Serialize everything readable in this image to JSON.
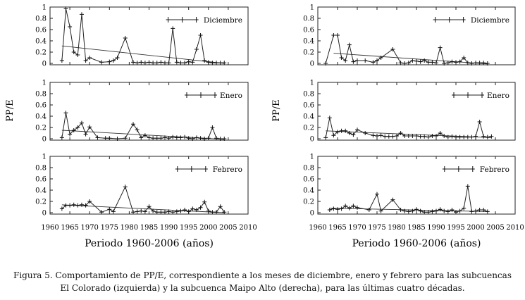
{
  "caption": {
    "line1": "Figura 5. Comportamiento de PP/E, correspondiente a los meses de diciembre, enero y febrero para las subcuencas",
    "line2": "El Colorado (izquierda) y la subcuenca Maipo Alto (derecha), para las últimas cuatro décadas."
  },
  "chart_data": [
    {
      "type": "line",
      "column": "left",
      "ylabel": "PP/E",
      "xlabel": "Periodo 1960-2006 (años)",
      "xlim": [
        1960,
        2010
      ],
      "x_ticks": [
        1960,
        1965,
        1970,
        1975,
        1980,
        1985,
        1990,
        1995,
        2000,
        2005,
        2010
      ],
      "y_ticks": [
        0,
        0.2,
        0.4,
        0.6,
        0.8,
        1
      ],
      "ylim": [
        0,
        1
      ],
      "panels": [
        {
          "legend": "Diciembre",
          "x": [
            1963,
            1964,
            1965,
            1966,
            1967,
            1968,
            1969,
            1970,
            1973,
            1975,
            1976,
            1977,
            1979,
            1981,
            1982,
            1983,
            1984,
            1985,
            1986,
            1987,
            1988,
            1989,
            1990,
            1991,
            1992,
            1993,
            1994,
            1995,
            1996,
            1997,
            1998,
            1999,
            2000,
            2001,
            2002,
            2003,
            2004
          ],
          "values": [
            0.05,
            0.97,
            0.65,
            0.2,
            0.15,
            0.87,
            0.05,
            0.1,
            0.02,
            0.03,
            0.05,
            0.1,
            0.45,
            0.02,
            0.01,
            0.02,
            0.01,
            0.02,
            0.01,
            0.01,
            0.02,
            0.01,
            0.01,
            0.62,
            0.02,
            0.01,
            0.01,
            0.03,
            0.02,
            0.25,
            0.5,
            0.05,
            0.02,
            0.01,
            0.01,
            0.01,
            0.01
          ],
          "trend": [
            [
              1963,
              0.31
            ],
            [
              2004,
              0.0
            ]
          ]
        },
        {
          "legend": "Enero",
          "x": [
            1963,
            1964,
            1965,
            1966,
            1967,
            1968,
            1969,
            1970,
            1972,
            1974,
            1975,
            1977,
            1979,
            1981,
            1982,
            1983,
            1984,
            1985,
            1986,
            1987,
            1988,
            1989,
            1990,
            1991,
            1992,
            1993,
            1994,
            1995,
            1996,
            1997,
            1998,
            1999,
            2000,
            2001,
            2002,
            2003,
            2004
          ],
          "values": [
            0.02,
            0.46,
            0.08,
            0.15,
            0.2,
            0.28,
            0.08,
            0.21,
            0.02,
            0.01,
            0.01,
            0.0,
            0.01,
            0.26,
            0.16,
            0.02,
            0.06,
            0.02,
            0.01,
            0.01,
            0.01,
            0.02,
            0.01,
            0.03,
            0.02,
            0.02,
            0.03,
            0.01,
            0.0,
            0.02,
            0.01,
            0.0,
            0.01,
            0.2,
            0.01,
            0.0,
            0.0
          ],
          "trend": [
            [
              1963,
              0.15
            ],
            [
              2004,
              -0.01
            ]
          ]
        },
        {
          "legend": "Febrero",
          "x": [
            1963,
            1964,
            1965,
            1966,
            1967,
            1968,
            1969,
            1970,
            1973,
            1975,
            1976,
            1979,
            1981,
            1982,
            1983,
            1984,
            1985,
            1986,
            1987,
            1988,
            1989,
            1990,
            1991,
            1992,
            1993,
            1994,
            1995,
            1996,
            1997,
            1998,
            1999,
            2000,
            2001,
            2002,
            2003,
            2004
          ],
          "values": [
            0.07,
            0.13,
            0.13,
            0.14,
            0.13,
            0.14,
            0.13,
            0.2,
            0.01,
            0.06,
            0.02,
            0.46,
            0.01,
            0.02,
            0.03,
            0.02,
            0.11,
            0.03,
            0.01,
            0.01,
            0.01,
            0.02,
            0.01,
            0.02,
            0.03,
            0.05,
            0.02,
            0.07,
            0.05,
            0.09,
            0.19,
            0.03,
            0.01,
            0.01,
            0.11,
            0.01
          ],
          "trend": [
            [
              1963,
              0.14
            ],
            [
              2004,
              0.0
            ]
          ]
        }
      ]
    },
    {
      "type": "line",
      "column": "right",
      "ylabel": "PP/E",
      "xlabel": "Periodo 1960-2006 (años)",
      "xlim": [
        1960,
        2010
      ],
      "x_ticks": [
        1960,
        1965,
        1970,
        1975,
        1980,
        1985,
        1990,
        1995,
        2000,
        2005,
        2010
      ],
      "y_ticks": [
        0,
        0.2,
        0.4,
        0.6,
        0.8,
        1
      ],
      "ylim": [
        0,
        1
      ],
      "panels": [
        {
          "legend": "Diciembre",
          "x": [
            1962,
            1964,
            1965,
            1966,
            1967,
            1968,
            1969,
            1970,
            1972,
            1974,
            1975,
            1976,
            1979,
            1981,
            1982,
            1983,
            1984,
            1985,
            1986,
            1987,
            1988,
            1989,
            1990,
            1991,
            1992,
            1993,
            1994,
            1995,
            1996,
            1997,
            1998,
            1999,
            2000,
            2001,
            2002,
            2003
          ],
          "values": [
            0.0,
            0.5,
            0.5,
            0.1,
            0.05,
            0.33,
            0.03,
            0.05,
            0.05,
            0.02,
            0.05,
            0.1,
            0.25,
            0.01,
            0.0,
            0.01,
            0.05,
            0.04,
            0.03,
            0.05,
            0.02,
            0.02,
            0.01,
            0.28,
            0.0,
            0.01,
            0.03,
            0.02,
            0.03,
            0.1,
            0.01,
            0.0,
            0.01,
            0.01,
            0.01,
            0.0
          ],
          "trend": [
            [
              1964,
              0.18
            ],
            [
              2003,
              -0.01
            ]
          ]
        },
        {
          "legend": "Enero",
          "x": [
            1962,
            1963,
            1964,
            1965,
            1966,
            1967,
            1968,
            1969,
            1970,
            1972,
            1974,
            1975,
            1976,
            1977,
            1978,
            1979,
            1980,
            1981,
            1982,
            1983,
            1984,
            1985,
            1986,
            1987,
            1988,
            1989,
            1990,
            1991,
            1992,
            1993,
            1994,
            1995,
            1996,
            1997,
            1998,
            1999,
            2000,
            2001,
            2002,
            2003,
            2004
          ],
          "values": [
            0.02,
            0.37,
            0.06,
            0.12,
            0.14,
            0.14,
            0.1,
            0.07,
            0.16,
            0.1,
            0.06,
            0.05,
            0.06,
            0.04,
            0.04,
            0.04,
            0.05,
            0.1,
            0.05,
            0.05,
            0.05,
            0.05,
            0.04,
            0.04,
            0.03,
            0.05,
            0.05,
            0.1,
            0.05,
            0.03,
            0.04,
            0.03,
            0.03,
            0.03,
            0.03,
            0.03,
            0.04,
            0.3,
            0.04,
            0.03,
            0.04
          ],
          "trend": [
            [
              1962,
              0.14
            ],
            [
              2004,
              0.02
            ]
          ]
        },
        {
          "legend": "Febrero",
          "x": [
            1963,
            1964,
            1965,
            1966,
            1967,
            1968,
            1969,
            1970,
            1973,
            1975,
            1976,
            1979,
            1981,
            1982,
            1983,
            1984,
            1985,
            1986,
            1987,
            1988,
            1989,
            1990,
            1991,
            1992,
            1993,
            1994,
            1995,
            1996,
            1997,
            1998,
            1999,
            2000,
            2001,
            2002,
            2003
          ],
          "values": [
            0.05,
            0.07,
            0.06,
            0.07,
            0.12,
            0.08,
            0.12,
            0.09,
            0.05,
            0.33,
            0.03,
            0.23,
            0.05,
            0.03,
            0.02,
            0.03,
            0.06,
            0.03,
            0.01,
            0.01,
            0.02,
            0.03,
            0.06,
            0.03,
            0.02,
            0.05,
            0.01,
            0.03,
            0.08,
            0.47,
            0.02,
            0.03,
            0.05,
            0.05,
            0.02
          ],
          "trend": [
            [
              1963,
              0.08
            ],
            [
              2003,
              0.02
            ]
          ]
        }
      ]
    }
  ]
}
